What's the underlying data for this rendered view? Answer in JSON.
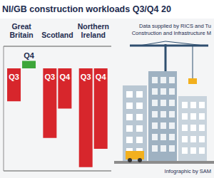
{
  "chart_data": {
    "type": "bar",
    "title": "NI/GB construction workloads Q3/Q4 20",
    "annotations": [
      "Data supplied by RICS and Tu",
      "Construction and Infrastructure M",
      "Infographic by SAM"
    ],
    "categories": [
      "Great Britain",
      "Scotland",
      "Northern Ireland"
    ],
    "series": [
      {
        "name": "Q3",
        "color": "#d7262c",
        "values": [
          -9,
          -19,
          -27
        ]
      },
      {
        "name": "Q4",
        "colors": [
          "#3da63a",
          "#d7262c",
          "#d7262c"
        ],
        "values": [
          2,
          -11,
          -22
        ]
      }
    ],
    "ylim": [
      -28,
      6
    ],
    "yticks": [
      0
    ],
    "grid": true,
    "tick_labels": "x"
  }
}
